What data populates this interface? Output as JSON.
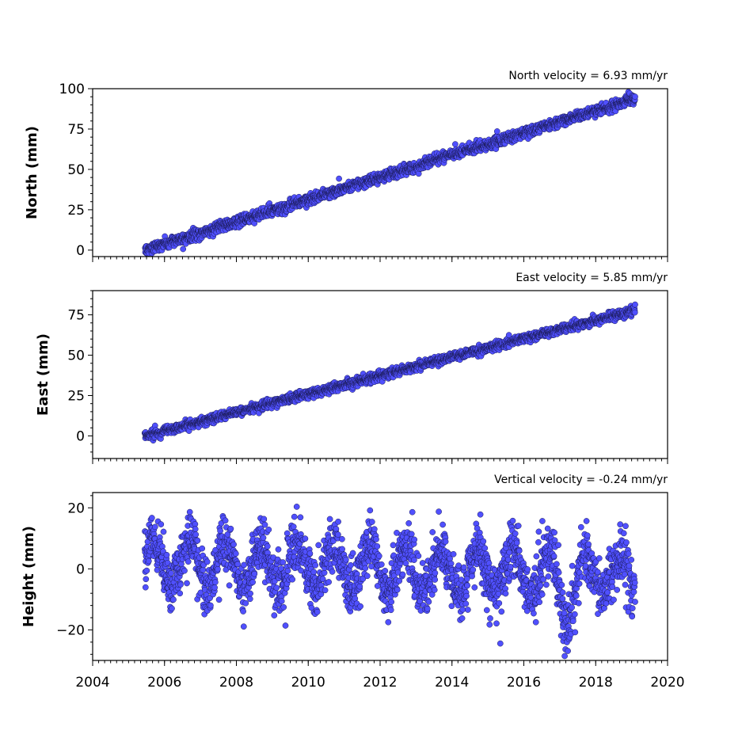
{
  "colors": {
    "marker_fill": "#5050ff",
    "marker_edge": "#1a1a55",
    "axes": "#000000",
    "background": "#ffffff"
  },
  "shared_x": {
    "xlim": [
      2004,
      2020
    ],
    "ticks": [
      2004,
      2006,
      2008,
      2010,
      2012,
      2014,
      2016,
      2018,
      2020
    ],
    "tick_labels": [
      "2004",
      "2006",
      "2008",
      "2010",
      "2012",
      "2014",
      "2016",
      "2018",
      "2020"
    ],
    "minor_step_years": 0.1666667
  },
  "chart_data": [
    {
      "type": "scatter",
      "title": "North velocity = 6.93 mm/yr",
      "xlabel": "",
      "ylabel": "North (mm)",
      "ylim": [
        -4,
        100
      ],
      "yticks": [
        0,
        25,
        50,
        75,
        100
      ],
      "ytick_labels": [
        "0",
        "25",
        "50",
        "75",
        "100"
      ],
      "grid": false,
      "series": [
        {
          "x_start": 2005.45,
          "x_end": 2019.1,
          "velocity_mm_per_yr": 6.93,
          "value_at_start": 0,
          "value_at_end": 94,
          "scatter_mm": 1.6,
          "samples": [
            [
              2005.5,
              0
            ],
            [
              2007.0,
              10
            ],
            [
              2008.5,
              21
            ],
            [
              2010.0,
              31
            ],
            [
              2011.5,
              41
            ],
            [
              2013.0,
              52
            ],
            [
              2014.5,
              62
            ],
            [
              2016.0,
              72
            ],
            [
              2017.5,
              82
            ],
            [
              2019.0,
              93
            ]
          ]
        }
      ]
    },
    {
      "type": "scatter",
      "title": "East velocity = 5.85 mm/yr",
      "xlabel": "",
      "ylabel": "East (mm)",
      "ylim": [
        -14,
        90
      ],
      "yticks": [
        0,
        25,
        50,
        75
      ],
      "ytick_labels": [
        "0",
        "25",
        "50",
        "75"
      ],
      "grid": false,
      "series": [
        {
          "x_start": 2005.45,
          "x_end": 2019.1,
          "velocity_mm_per_yr": 5.85,
          "value_at_start": 0,
          "value_at_end": 78,
          "scatter_mm": 1.3,
          "samples": [
            [
              2005.5,
              0
            ],
            [
              2007.0,
              8
            ],
            [
              2008.5,
              17
            ],
            [
              2010.0,
              25
            ],
            [
              2011.5,
              34
            ],
            [
              2013.0,
              43
            ],
            [
              2014.5,
              51
            ],
            [
              2016.0,
              60
            ],
            [
              2017.5,
              69
            ],
            [
              2019.0,
              77
            ]
          ]
        }
      ]
    },
    {
      "type": "scatter",
      "title": "Vertical velocity = -0.24 mm/yr",
      "xlabel": "",
      "ylabel": "Height (mm)",
      "ylim": [
        -30,
        25
      ],
      "yticks": [
        -20,
        0,
        20
      ],
      "ytick_labels": [
        "−20",
        "0",
        "20"
      ],
      "grid": false,
      "series": [
        {
          "x_start": 2005.45,
          "x_end": 2019.1,
          "velocity_mm_per_yr": -0.24,
          "value_at_start": 2,
          "value_at_end": -2,
          "seasonal_amplitude_mm": 7,
          "scatter_mm": 4.5,
          "range_observed": [
            -27,
            22
          ],
          "samples": [
            [
              2005.6,
              5
            ],
            [
              2006.0,
              -5
            ],
            [
              2006.6,
              4
            ],
            [
              2007.1,
              -8
            ],
            [
              2007.6,
              8
            ],
            [
              2008.1,
              -7
            ],
            [
              2008.6,
              5
            ],
            [
              2009.1,
              -9
            ],
            [
              2009.7,
              6
            ],
            [
              2010.2,
              -4
            ],
            [
              2010.7,
              2
            ],
            [
              2011.2,
              -12
            ],
            [
              2011.7,
              4
            ],
            [
              2012.2,
              -10
            ],
            [
              2012.7,
              5
            ],
            [
              2013.2,
              -8
            ],
            [
              2013.7,
              5
            ],
            [
              2014.2,
              -7
            ],
            [
              2014.7,
              6
            ],
            [
              2015.2,
              -5
            ],
            [
              2015.7,
              8
            ],
            [
              2016.2,
              -6
            ],
            [
              2016.7,
              8
            ],
            [
              2017.2,
              -20
            ],
            [
              2017.7,
              2
            ],
            [
              2018.2,
              -8
            ],
            [
              2018.7,
              6
            ],
            [
              2019.0,
              -4
            ]
          ]
        }
      ]
    }
  ]
}
